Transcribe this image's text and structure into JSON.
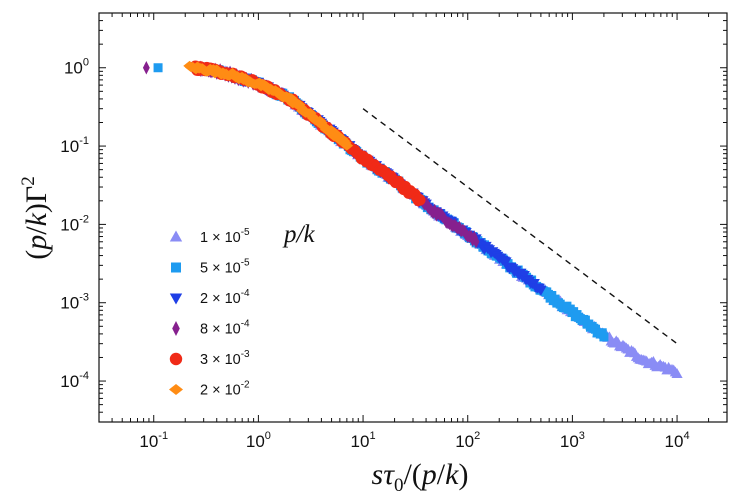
{
  "chart_data": {
    "type": "scatter",
    "scale": {
      "x": "log",
      "y": "log"
    },
    "xlim": [
      0.03,
      30000
    ],
    "ylim": [
      3e-05,
      5
    ],
    "xlabel_parts": [
      "s",
      "τ",
      "0",
      "/(",
      "p",
      "/",
      "k",
      ")"
    ],
    "ylabel_parts": [
      "(",
      "p",
      "/",
      "k",
      ")Γ",
      "2"
    ],
    "x_ticks": [
      {
        "value": 0.1,
        "base": "10",
        "exp": "-1"
      },
      {
        "value": 1,
        "base": "10",
        "exp": "0"
      },
      {
        "value": 10,
        "base": "10",
        "exp": "1"
      },
      {
        "value": 100,
        "base": "10",
        "exp": "2"
      },
      {
        "value": 1000,
        "base": "10",
        "exp": "3"
      },
      {
        "value": 10000,
        "base": "10",
        "exp": "4"
      }
    ],
    "y_ticks": [
      {
        "value": 1,
        "base": "10",
        "exp": "0"
      },
      {
        "value": 0.1,
        "base": "10",
        "exp": "-1"
      },
      {
        "value": 0.01,
        "base": "10",
        "exp": "-2"
      },
      {
        "value": 0.001,
        "base": "10",
        "exp": "-3"
      },
      {
        "value": 0.0001,
        "base": "10",
        "exp": "-4"
      }
    ],
    "legend_title": "p/k",
    "reference_line": {
      "style": "dashed",
      "color": "#111111",
      "x": [
        10,
        10000
      ],
      "y": [
        0.3,
        0.0003
      ]
    },
    "series": [
      {
        "name": "1 × 10-5",
        "label_mant": "1 × 10",
        "label_exp": "-5",
        "marker": "triangle-up",
        "color": "#8A8CF5",
        "x": [
          1,
          10000
        ],
        "master_range": [
          0.25,
          10000
        ]
      },
      {
        "name": "5 × 10-5",
        "label_mant": "5 × 10",
        "label_exp": "-5",
        "marker": "square",
        "color": "#1E9BF0",
        "x": [
          0.11,
          2000
        ],
        "master_range": [
          0.25,
          2000
        ]
      },
      {
        "name": "2 × 10-4",
        "label_mant": "2 × 10",
        "label_exp": "-4",
        "marker": "triangle-down",
        "color": "#1F3FE6",
        "x": [
          0.5,
          500
        ],
        "master_range": [
          0.5,
          500
        ]
      },
      {
        "name": "8 × 10-4",
        "label_mant": "8 × 10",
        "label_exp": "-4",
        "marker": "diamond-thin",
        "color": "#86208E",
        "x": [
          0.085,
          120
        ],
        "master_range": [
          0.25,
          120
        ]
      },
      {
        "name": "3 × 10-3",
        "label_mant": "3 × 10",
        "label_exp": "-3",
        "marker": "circle",
        "color": "#F02A17",
        "x": [
          0.25,
          35
        ],
        "master_range": [
          0.25,
          35
        ]
      },
      {
        "name": "2 × 10-2",
        "label_mant": "2 × 10",
        "label_exp": "-2",
        "marker": "diamond-wide",
        "color": "#FF8C14",
        "x": [
          0.22,
          7
        ],
        "master_range": [
          0.22,
          7
        ]
      }
    ],
    "master_curve": {
      "description": "all series collapse onto one curve: y ≈ 1 at small x, decaying as x^-1 at large x",
      "points": [
        [
          0.08,
          1.0
        ],
        [
          0.25,
          1.0
        ],
        [
          0.5,
          0.85
        ],
        [
          1,
          0.62
        ],
        [
          2,
          0.4
        ],
        [
          5,
          0.15
        ],
        [
          10,
          0.07
        ],
        [
          20,
          0.037
        ],
        [
          50,
          0.014
        ],
        [
          100,
          0.0075
        ],
        [
          200,
          0.0037
        ],
        [
          500,
          0.0015
        ],
        [
          1000,
          0.00075
        ],
        [
          2000,
          0.00038
        ],
        [
          5000,
          0.00018
        ],
        [
          10000,
          0.00013
        ]
      ]
    }
  }
}
